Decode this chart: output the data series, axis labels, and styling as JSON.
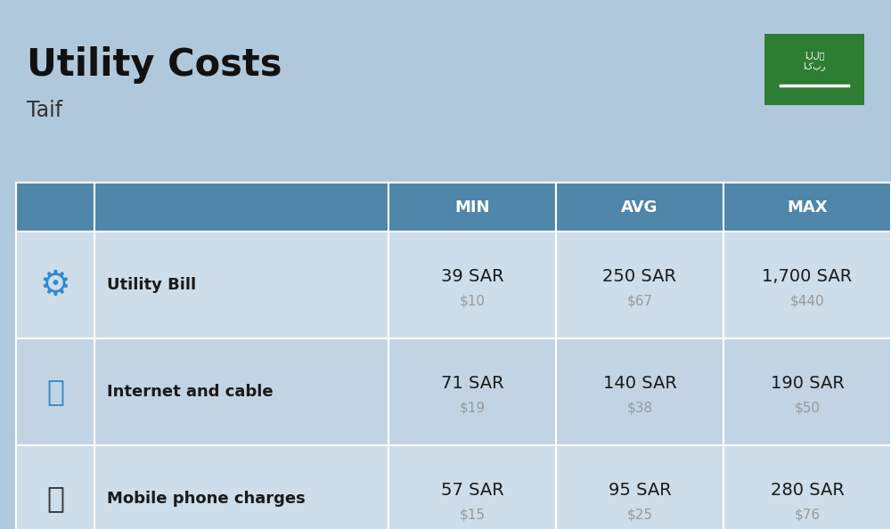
{
  "title": "Utility Costs",
  "subtitle": "Taif",
  "background_color": "#b0c8dc",
  "header_bg_color": "#4f86aa",
  "header_text_color": "#ffffff",
  "row_bg_even": "#cddde9",
  "row_bg_odd": "#c2d4e4",
  "cell_text_color": "#1a1a1a",
  "usd_text_color": "#999999",
  "flag_bg_color": "#2e7d32",
  "headers": [
    "MIN",
    "AVG",
    "MAX"
  ],
  "rows": [
    {
      "label": "Utility Bill",
      "min_sar": "39 SAR",
      "min_usd": "$10",
      "avg_sar": "250 SAR",
      "avg_usd": "$67",
      "max_sar": "1,700 SAR",
      "max_usd": "$440"
    },
    {
      "label": "Internet and cable",
      "min_sar": "71 SAR",
      "min_usd": "$19",
      "avg_sar": "140 SAR",
      "avg_usd": "$38",
      "max_sar": "190 SAR",
      "max_usd": "$50"
    },
    {
      "label": "Mobile phone charges",
      "min_sar": "57 SAR",
      "min_usd": "$15",
      "avg_sar": "95 SAR",
      "avg_usd": "$25",
      "max_sar": "280 SAR",
      "max_usd": "$76"
    }
  ],
  "title_fontsize": 30,
  "subtitle_fontsize": 17,
  "header_fontsize": 13,
  "label_fontsize": 13,
  "value_fontsize": 14,
  "usd_fontsize": 11,
  "fig_width": 10.0,
  "fig_height": 5.94,
  "dpi": 100
}
